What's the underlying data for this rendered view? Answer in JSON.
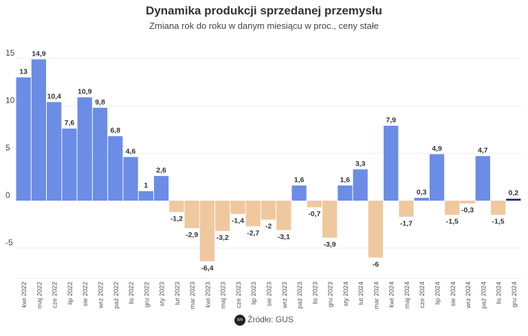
{
  "chart_data": {
    "type": "bar",
    "title": "Dynamika produkcji sprzedanej przemysłu",
    "subtitle": "Zmiana rok do roku w danym miesiącu w proc., ceny stałe",
    "categories": [
      "kwi 2022",
      "maj 2022",
      "cze 2022",
      "lip 2022",
      "sie 2022",
      "wrz 2022",
      "paź 2022",
      "lis 2022",
      "gru 2022",
      "sty 2023",
      "lut 2023",
      "mar 2023",
      "kwi 2023",
      "maj 2023",
      "cze 2023",
      "lip 2023",
      "sie 2023",
      "wrz 2023",
      "paź 2023",
      "lis 2023",
      "gru 2023",
      "sty 2024",
      "lut 2024",
      "mar 2024",
      "kwi 2024",
      "maj 2024",
      "cze 2024",
      "lip 2024",
      "sie 2024",
      "wrz 2024",
      "paź 2024",
      "lis 2024",
      "gru 2024"
    ],
    "values": [
      13,
      14.9,
      10.4,
      7.6,
      10.9,
      9.8,
      6.8,
      4.6,
      1,
      2.6,
      -1.2,
      -2.9,
      -6.4,
      -3.2,
      -1.4,
      -2.7,
      -2,
      -3.1,
      1.6,
      -0.7,
      -3.9,
      1.6,
      3.3,
      -6,
      7.9,
      -1.7,
      0.3,
      4.9,
      -1.5,
      -0.3,
      4.7,
      -1.5,
      0.2
    ],
    "data_labels": [
      "13",
      "14,9",
      "10,4",
      "7,6",
      "10,9",
      "9,8",
      "6,8",
      "4,6",
      "1",
      "2,6",
      "-1,2",
      "-2,9",
      "-6,4",
      "-3,2",
      "-1,4",
      "-2,7",
      "-2",
      "-3,1",
      "1,6",
      "-0,7",
      "-3,9",
      "1,6",
      "3,3",
      "-6",
      "7,9",
      "-1,7",
      "0,3",
      "4,9",
      "-1,5",
      "-0,3",
      "4,7",
      "-1,5",
      "0,2"
    ],
    "yticks": [
      15,
      10,
      5,
      0,
      -5
    ],
    "ytick_labels": [
      "15",
      "10",
      "5",
      "0",
      "-5"
    ],
    "ylim": [
      -8.2,
      15.5
    ],
    "grid": true,
    "colors": {
      "positive": "#6b8de6",
      "negative": "#f0c8a0",
      "highlight": "#1f2d6b"
    }
  },
  "footer": {
    "source": "Źródło: GUS",
    "logo_text": "tvn24"
  }
}
